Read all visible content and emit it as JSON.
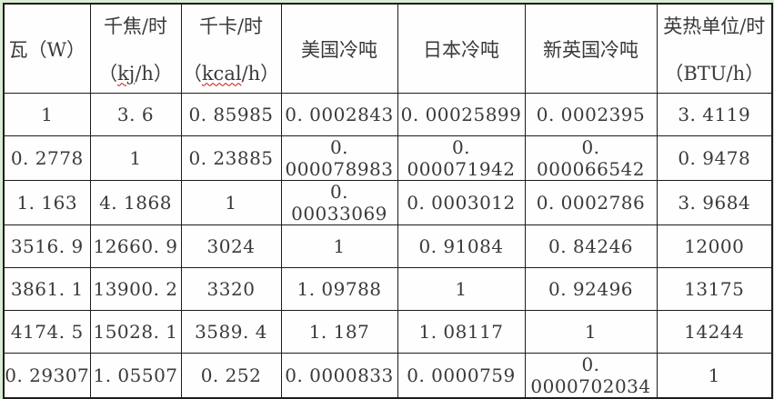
{
  "colors": {
    "page_edge_green": "#d9ecd4",
    "table_background": "#fefefe",
    "grid_line": "#1c1c1c",
    "text": "#3a3a3a",
    "spellcheck_red": "#cc1111"
  },
  "table": {
    "description": "power-unit-conversion-table",
    "columns": [
      {
        "title": "瓦（W）",
        "subtitle": null,
        "misspelled": null
      },
      {
        "title": "千焦/时",
        "subtitle": "（kj/h）",
        "misspelled": "kj"
      },
      {
        "title": "千卡/时",
        "subtitle": "（kcal/h）",
        "misspelled": "kcal"
      },
      {
        "title": "美国冷吨",
        "subtitle": null,
        "misspelled": null
      },
      {
        "title": "日本冷吨",
        "subtitle": null,
        "misspelled": null
      },
      {
        "title": "新英国冷吨",
        "subtitle": null,
        "misspelled": null
      },
      {
        "title": "英热单位/时",
        "subtitle": "（BTU/h）",
        "misspelled": null
      }
    ],
    "rows": [
      [
        "1",
        "3. 6",
        "0. 85985",
        "0. 0002843",
        "0. 00025899",
        "0. 0002395",
        "3. 4119"
      ],
      [
        "0. 2778",
        "1",
        "0. 23885",
        "0. 000078983",
        "0. 000071942",
        "0. 000066542",
        "0. 9478"
      ],
      [
        "1. 163",
        "4. 1868",
        "1",
        "0. 00033069",
        "0. 0003012",
        "0. 0002786",
        "3. 9684"
      ],
      [
        "3516. 9",
        "12660. 9",
        "3024",
        "1",
        "0. 91084",
        "0. 84246",
        "12000"
      ],
      [
        "3861. 1",
        "13900. 2",
        "3320",
        "1. 09788",
        "1",
        "0. 92496",
        "13175"
      ],
      [
        "4174. 5",
        "15028. 1",
        "3589. 4",
        "1. 187",
        "1. 08117",
        "1",
        "14244"
      ],
      [
        "0. 29307",
        "1. 05507",
        "0. 252",
        "0. 0000833",
        "0. 0000759",
        "0. 0000702034",
        "1"
      ]
    ]
  }
}
